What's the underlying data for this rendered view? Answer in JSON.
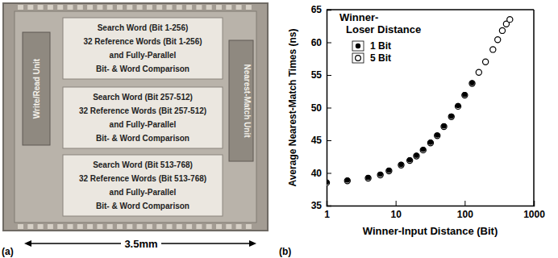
{
  "photo": {
    "blocks": [
      {
        "lines": [
          "Search Word (Bit 1-256)",
          "32 Reference Words (Bit 1-256)",
          "and Fully-Parallel",
          "Bit- & Word Comparison"
        ]
      },
      {
        "lines": [
          "Search Word (Bit 257-512)",
          "32 Reference Words (Bit 257-512)",
          "and Fully-Parallel",
          "Bit- & Word Comparison"
        ]
      },
      {
        "lines": [
          "Search Word (Bit 513-768)",
          "32 Reference Words (Bit 513-768)",
          "and Fully-Parallel",
          "Bit- & Word Comparison"
        ]
      }
    ],
    "left_unit": "Write/Read Unit",
    "right_unit": "Nearest-Match Unit",
    "width_label": "3.5mm",
    "label": "(a)"
  },
  "chart_data": {
    "type": "scatter",
    "panel_label": "(b)",
    "x_label": "Winner-Input Distance (Bit)",
    "y_label": "Average Nearest-Match Times (ns)",
    "legend_title": [
      "Winner-",
      "Loser Distance"
    ],
    "log": "x",
    "xlim": [
      1,
      1000
    ],
    "xticks": [
      1,
      10,
      100,
      1000
    ],
    "ylim": [
      35,
      65
    ],
    "yticks": [
      35,
      40,
      45,
      50,
      55,
      60,
      65
    ],
    "legend": "upper left",
    "series": [
      {
        "name": "1 Bit",
        "color": "#000000",
        "marker": "filled-circle",
        "x": [
          1,
          2,
          4,
          6,
          8,
          12,
          16,
          20,
          25,
          32,
          40,
          50,
          64,
          80,
          100,
          128
        ],
        "values": [
          38.6,
          38.9,
          39.3,
          39.8,
          40.4,
          41.3,
          42.0,
          42.7,
          43.6,
          44.7,
          45.8,
          47.2,
          48.7,
          50.3,
          52.0,
          53.8
        ]
      },
      {
        "name": "5 Bit",
        "color": "#000000",
        "marker": "open-circle",
        "x": [
          1,
          2,
          4,
          6,
          8,
          12,
          16,
          20,
          25,
          32,
          40,
          50,
          64,
          80,
          100,
          128,
          160,
          200,
          256,
          300,
          350,
          400,
          450
        ],
        "values": [
          38.5,
          38.8,
          39.2,
          39.7,
          40.3,
          41.2,
          41.9,
          42.6,
          43.5,
          44.6,
          45.7,
          47.1,
          48.6,
          50.2,
          51.9,
          53.7,
          55.4,
          57.0,
          58.9,
          60.4,
          61.8,
          62.8,
          63.5
        ]
      }
    ]
  }
}
